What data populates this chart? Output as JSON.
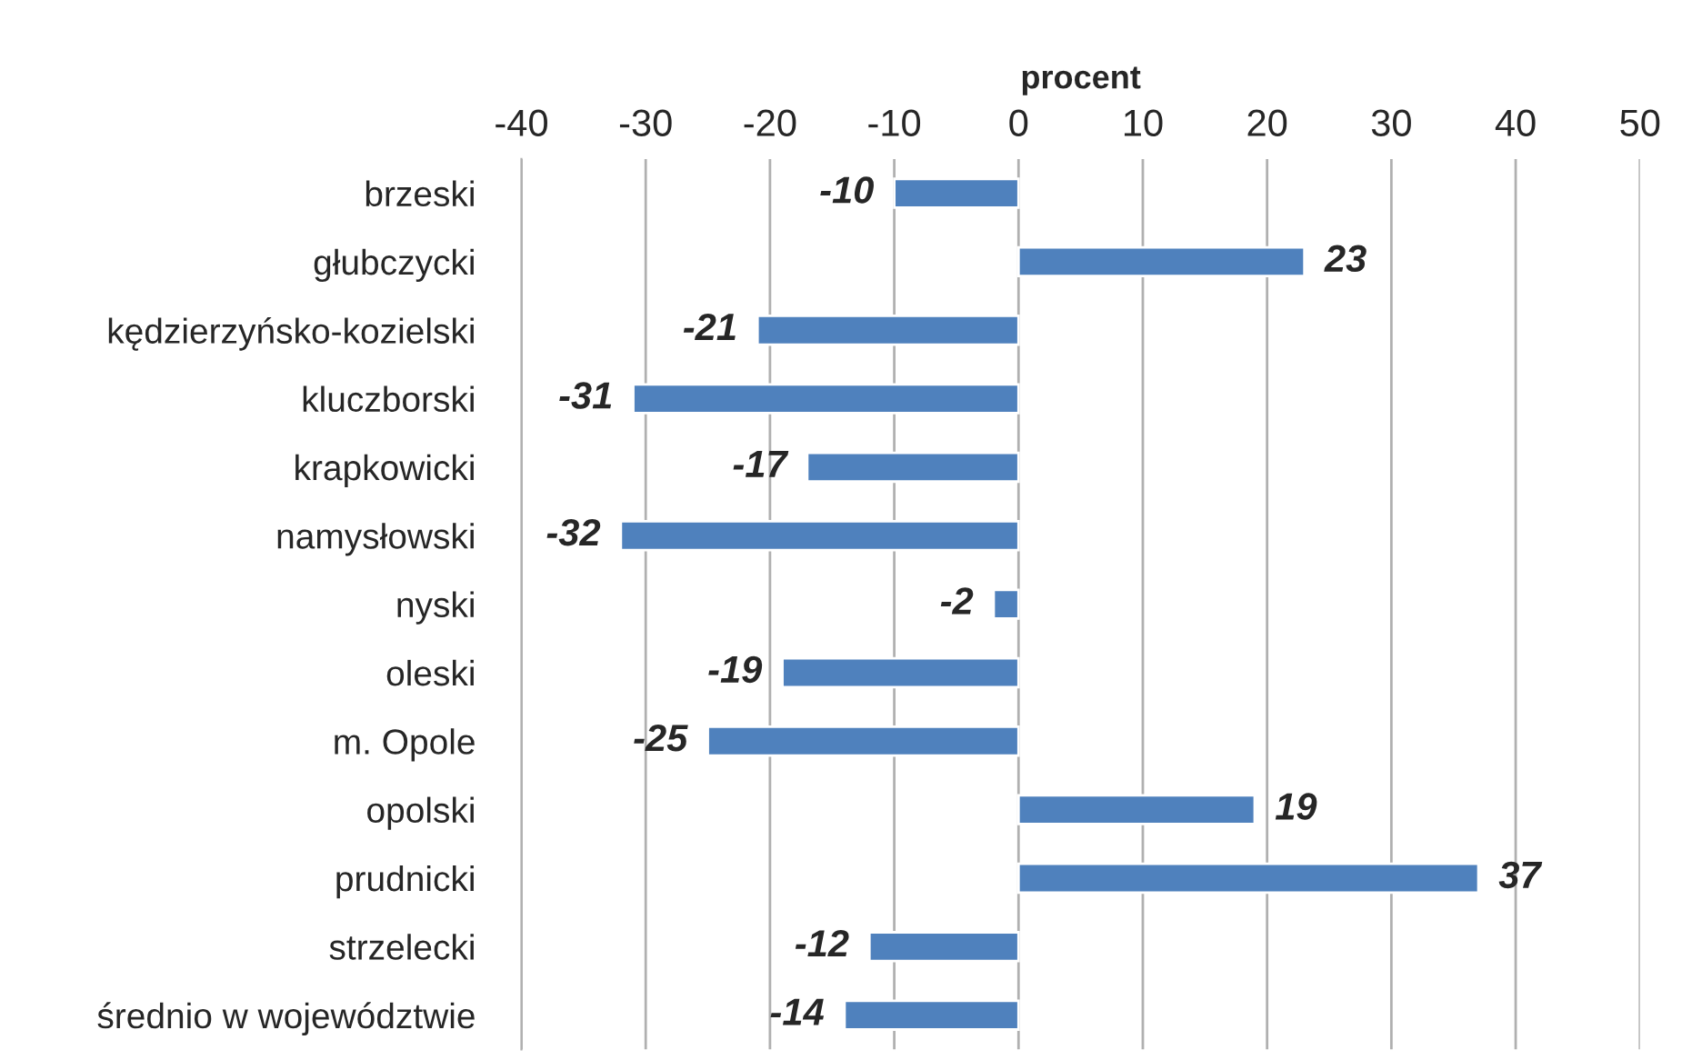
{
  "chart_data": {
    "type": "bar",
    "orientation": "horizontal",
    "xlabel": "procent",
    "categories": [
      "brzeski",
      "głubczycki",
      "kędzierzyńsko-kozielski",
      "kluczborski",
      "krapkowicki",
      "namysłowski",
      "nyski",
      "oleski",
      "m. Opole",
      "opolski",
      "prudnicki",
      "strzelecki",
      "średnio w województwie"
    ],
    "values": [
      -10,
      23,
      -21,
      -31,
      -17,
      -32,
      -2,
      -19,
      -25,
      19,
      37,
      -12,
      -14
    ],
    "color": "#4f81bd",
    "xlim": [
      -40,
      50
    ],
    "xticks": [
      -40,
      -30,
      -20,
      -10,
      0,
      10,
      20,
      30,
      40,
      50
    ],
    "grid": "x",
    "data_labels": true
  }
}
